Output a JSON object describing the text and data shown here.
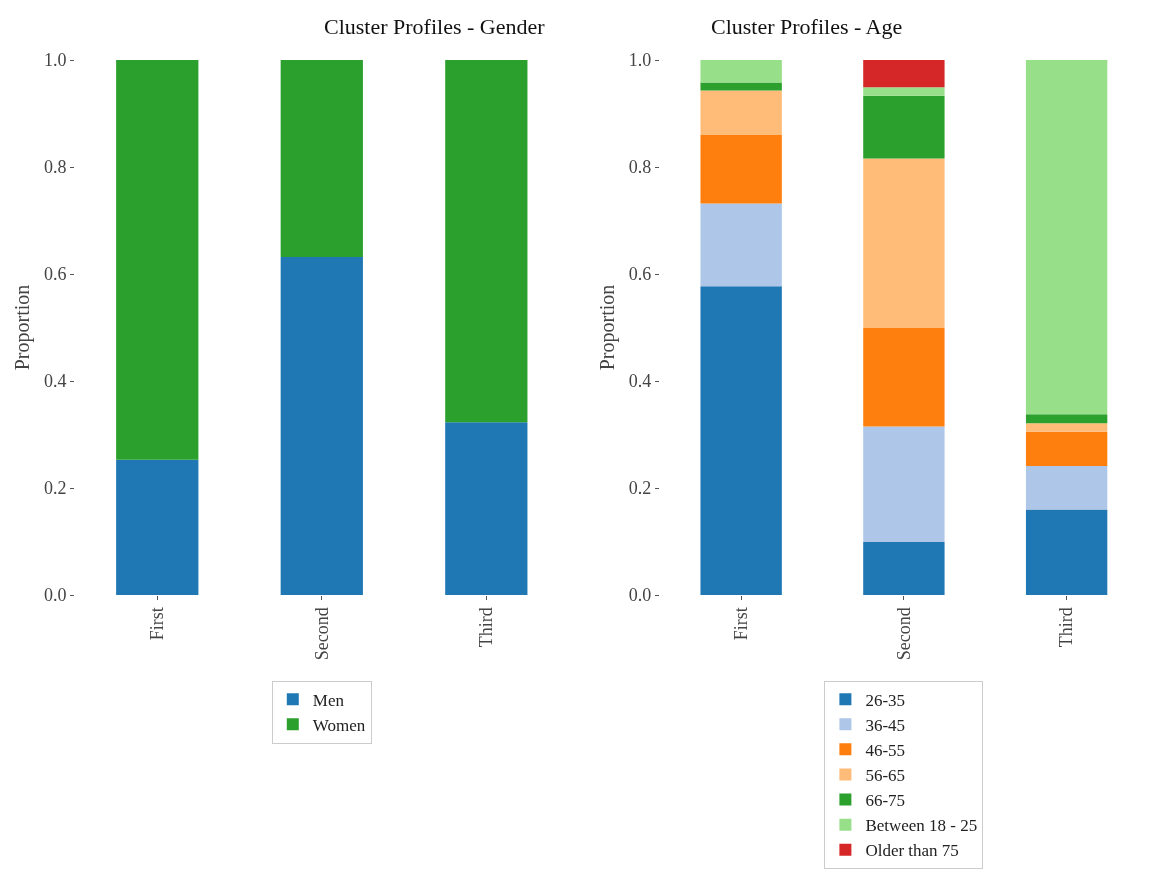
{
  "chart_data": [
    {
      "type": "bar",
      "title": "Cluster Profiles - Gender",
      "ylabel": "Proportion",
      "stacked": true,
      "categories": [
        "First",
        "Second",
        "Third"
      ],
      "ylim": [
        0,
        1
      ],
      "yticks": [
        {
          "value": 0,
          "label": "0.0"
        },
        {
          "value": 0.2,
          "label": "0.2"
        },
        {
          "value": 0.4,
          "label": "0.4"
        },
        {
          "value": 0.6,
          "label": "0.6"
        },
        {
          "value": 0.8,
          "label": "0.8"
        },
        {
          "value": 1,
          "label": "1.0"
        }
      ],
      "legend": "bottom",
      "series": [
        {
          "name": "Men",
          "color": "#1f77b4",
          "values": [
            0.253,
            0.632,
            0.323
          ]
        },
        {
          "name": "Women",
          "color": "#2ca02c",
          "values": [
            0.747,
            0.368,
            0.677
          ]
        }
      ]
    },
    {
      "type": "bar",
      "title": "Cluster Profiles - Age",
      "ylabel": "Proportion",
      "stacked": true,
      "categories": [
        "First",
        "Second",
        "Third"
      ],
      "ylim": [
        0,
        1
      ],
      "yticks": [
        {
          "value": 0,
          "label": "0.0"
        },
        {
          "value": 0.2,
          "label": "0.2"
        },
        {
          "value": 0.4,
          "label": "0.4"
        },
        {
          "value": 0.6,
          "label": "0.6"
        },
        {
          "value": 0.8,
          "label": "0.8"
        },
        {
          "value": 1,
          "label": "1.0"
        }
      ],
      "legend": "bottom",
      "series": [
        {
          "name": "26-35",
          "color": "#1f77b4",
          "values": [
            0.577,
            0.099,
            0.16
          ]
        },
        {
          "name": "36-45",
          "color": "#aec7e8",
          "values": [
            0.155,
            0.216,
            0.081
          ]
        },
        {
          "name": "46-55",
          "color": "#ff7f0e",
          "values": [
            0.128,
            0.184,
            0.064
          ]
        },
        {
          "name": "56-65",
          "color": "#ffbb78",
          "values": [
            0.083,
            0.317,
            0.016
          ]
        },
        {
          "name": "66-75",
          "color": "#2ca02c",
          "values": [
            0.015,
            0.117,
            0.017
          ]
        },
        {
          "name": "Between 18 - 25",
          "color": "#98df8a",
          "values": [
            0.042,
            0.016,
            0.662
          ]
        },
        {
          "name": "Older than 75",
          "color": "#d62728",
          "values": [
            0,
            0.051,
            0
          ]
        }
      ]
    }
  ]
}
